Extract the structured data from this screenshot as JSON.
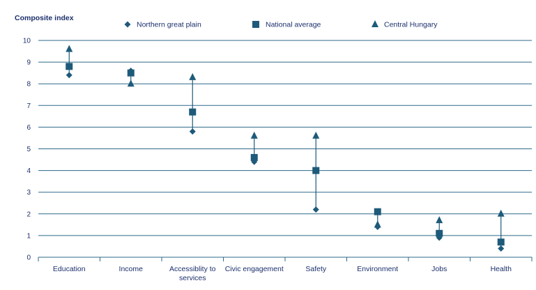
{
  "chart_data": {
    "type": "scatter",
    "ylabel": "Composite index",
    "xlabel": "",
    "ylim": [
      0,
      10
    ],
    "yticks": [
      0,
      1,
      2,
      3,
      4,
      5,
      6,
      7,
      8,
      9,
      10
    ],
    "grid": true,
    "legend_position": "top",
    "categories": [
      [
        "Education"
      ],
      [
        "Income"
      ],
      [
        "Accessiblity to",
        "services"
      ],
      [
        "Civic engagement"
      ],
      [
        "Safety"
      ],
      [
        "Environment"
      ],
      [
        "Jobs"
      ],
      [
        "Health"
      ]
    ],
    "series": [
      {
        "name": "Northern great plain",
        "marker": "diamond",
        "values": [
          8.4,
          8.6,
          5.8,
          4.4,
          2.2,
          1.4,
          0.9,
          0.4
        ]
      },
      {
        "name": "National average",
        "marker": "square",
        "values": [
          8.8,
          8.5,
          6.7,
          4.6,
          4.0,
          2.1,
          1.1,
          0.7
        ]
      },
      {
        "name": "Central Hungary",
        "marker": "triangle",
        "values": [
          9.6,
          8.0,
          8.3,
          5.6,
          5.6,
          1.5,
          1.7,
          2.0
        ]
      }
    ],
    "colors": {
      "marker": "#1e5a7a",
      "grid": "#2e6a8a",
      "text": "#1b2f6b"
    }
  }
}
